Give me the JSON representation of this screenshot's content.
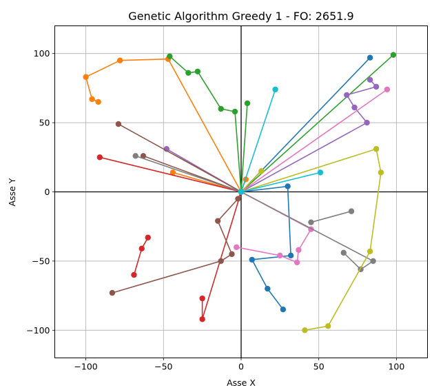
{
  "chart_data": {
    "type": "line",
    "title": "Genetic Algorithm Greedy 1 - FO: 2651.9",
    "xlabel": "Asse X",
    "ylabel": "Asse Y",
    "xlim": [
      -120,
      120
    ],
    "ylim": [
      -120,
      120
    ],
    "xticks": [
      -100,
      -50,
      0,
      50,
      100
    ],
    "yticks": [
      -100,
      -50,
      0,
      50,
      100
    ],
    "xtick_labels": [
      "−100",
      "−50",
      "0",
      "50",
      "100"
    ],
    "ytick_labels": [
      "−100",
      "−50",
      "0",
      "50",
      "100"
    ],
    "grid": true,
    "origin_axes": true,
    "legend": "none",
    "series": [
      {
        "color": "#1f77b4",
        "points": [
          [
            0,
            0
          ],
          [
            30,
            4
          ],
          [
            32,
            -46
          ],
          [
            7,
            -49
          ],
          [
            17,
            -70
          ],
          [
            27,
            -85
          ]
        ]
      },
      {
        "color": "#1f77b4",
        "points": [
          [
            0,
            0
          ],
          [
            83,
            97
          ]
        ]
      },
      {
        "color": "#ff7f0e",
        "points": [
          [
            0,
            0
          ],
          [
            3,
            9
          ]
        ]
      },
      {
        "color": "#ff7f0e",
        "points": [
          [
            0,
            0
          ],
          [
            -44,
            14
          ]
        ]
      },
      {
        "color": "#ff7f0e",
        "points": [
          [
            0,
            0
          ],
          [
            -47,
            96
          ],
          [
            -78,
            95
          ],
          [
            -100,
            83
          ],
          [
            -96,
            67
          ],
          [
            -92,
            65
          ]
        ]
      },
      {
        "color": "#2ca02c",
        "points": [
          [
            0,
            0
          ],
          [
            4,
            64
          ]
        ]
      },
      {
        "color": "#2ca02c",
        "points": [
          [
            0,
            0
          ],
          [
            -4,
            58
          ],
          [
            -13,
            60
          ],
          [
            -28,
            87
          ],
          [
            -34,
            86
          ],
          [
            -46,
            98
          ]
        ]
      },
      {
        "color": "#2ca02c",
        "points": [
          [
            0,
            0
          ],
          [
            98,
            99
          ]
        ]
      },
      {
        "color": "#d62728",
        "points": [
          [
            0,
            0
          ],
          [
            -91,
            25
          ]
        ]
      },
      {
        "color": "#d62728",
        "points": [
          [
            0,
            0
          ],
          [
            -25,
            -92
          ],
          [
            -25,
            -77
          ]
        ]
      },
      {
        "color": "#d62728",
        "points": [
          [
            -69,
            -60
          ],
          [
            -64,
            -41
          ],
          [
            -60,
            -33
          ]
        ]
      },
      {
        "color": "#9467bd",
        "points": [
          [
            0,
            0
          ],
          [
            -48,
            31
          ]
        ]
      },
      {
        "color": "#9467bd",
        "points": [
          [
            0,
            0
          ],
          [
            81,
            50
          ],
          [
            73,
            61
          ],
          [
            68,
            70
          ],
          [
            87,
            76
          ],
          [
            83,
            81
          ]
        ]
      },
      {
        "color": "#8c564b",
        "points": [
          [
            0,
            0
          ],
          [
            -79,
            49
          ]
        ]
      },
      {
        "color": "#8c564b",
        "points": [
          [
            0,
            0
          ],
          [
            -63,
            26
          ]
        ]
      },
      {
        "color": "#8c564b",
        "points": [
          [
            0,
            0
          ],
          [
            -2,
            -5
          ],
          [
            -15,
            -21
          ],
          [
            -6,
            -45
          ],
          [
            -13,
            -50
          ],
          [
            -83,
            -73
          ]
        ]
      },
      {
        "color": "#e377c2",
        "points": [
          [
            0,
            0
          ],
          [
            94,
            74
          ]
        ]
      },
      {
        "color": "#e377c2",
        "points": [
          [
            0,
            0
          ],
          [
            45,
            -27
          ],
          [
            37,
            -42
          ],
          [
            36,
            -51
          ],
          [
            25,
            -46
          ],
          [
            -3,
            -40
          ]
        ]
      },
      {
        "color": "#7f7f7f",
        "points": [
          [
            0,
            0
          ],
          [
            -68,
            26
          ]
        ]
      },
      {
        "color": "#7f7f7f",
        "points": [
          [
            0,
            0
          ],
          [
            85,
            -50
          ],
          [
            77,
            -56
          ],
          [
            66,
            -44
          ]
        ]
      },
      {
        "color": "#7f7f7f",
        "points": [
          [
            45,
            -22
          ],
          [
            71,
            -14
          ]
        ]
      },
      {
        "color": "#bcbd22",
        "points": [
          [
            0,
            0
          ],
          [
            13,
            15
          ]
        ]
      },
      {
        "color": "#bcbd22",
        "points": [
          [
            0,
            0
          ],
          [
            87,
            31
          ],
          [
            90,
            14
          ],
          [
            83,
            -43
          ],
          [
            56,
            -97
          ],
          [
            41,
            -100
          ]
        ]
      },
      {
        "color": "#17becf",
        "points": [
          [
            0,
            0
          ],
          [
            22,
            74
          ]
        ]
      },
      {
        "color": "#17becf",
        "points": [
          [
            0,
            0
          ],
          [
            51,
            14
          ]
        ]
      }
    ]
  }
}
